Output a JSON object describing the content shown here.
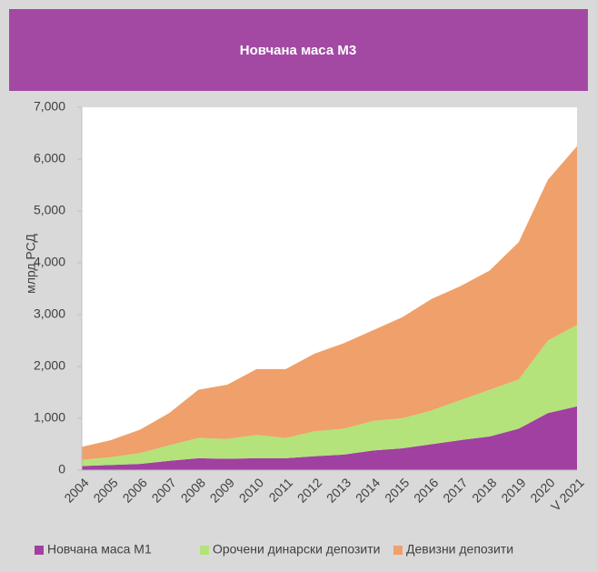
{
  "chart_data": {
    "type": "stacked_area",
    "title": "Новчана маса М3",
    "ylabel": "млрд РСД",
    "categories": [
      "2004",
      "2005",
      "2006",
      "2007",
      "2008",
      "2009",
      "2010",
      "2011",
      "2012",
      "2013",
      "2014",
      "2015",
      "2016",
      "2017",
      "2018",
      "2019",
      "2020",
      "V 2021"
    ],
    "series": [
      {
        "name": "Новчана маса М1",
        "color": "#a040a0",
        "values": [
          80,
          100,
          120,
          180,
          230,
          220,
          230,
          230,
          270,
          300,
          380,
          420,
          500,
          580,
          650,
          800,
          1100,
          1230
        ]
      },
      {
        "name": "Орочени динарски депозити",
        "color": "#b3e37a",
        "values": [
          120,
          150,
          210,
          300,
          390,
          380,
          450,
          390,
          480,
          500,
          570,
          580,
          650,
          770,
          900,
          950,
          1400,
          1570
        ]
      },
      {
        "name": "Девизни депозити",
        "color": "#f0a06a",
        "values": [
          250,
          330,
          450,
          620,
          930,
          1050,
          1270,
          1330,
          1500,
          1650,
          1750,
          1950,
          2150,
          2200,
          2300,
          2650,
          3100,
          3450
        ]
      }
    ],
    "ylim": [
      0,
      7000
    ],
    "yticks": [
      0,
      {
        "value": 1000,
        "label": "1,000"
      },
      {
        "value": 2000,
        "label": "2,000"
      },
      {
        "value": 3000,
        "label": "3,000"
      },
      {
        "value": 4000,
        "label": "4,000"
      },
      {
        "value": 5000,
        "label": "5,000"
      },
      {
        "value": 6000,
        "label": "6,000"
      },
      {
        "value": 7000,
        "label": "7,000"
      }
    ],
    "grid": false,
    "legend": "bottom"
  }
}
